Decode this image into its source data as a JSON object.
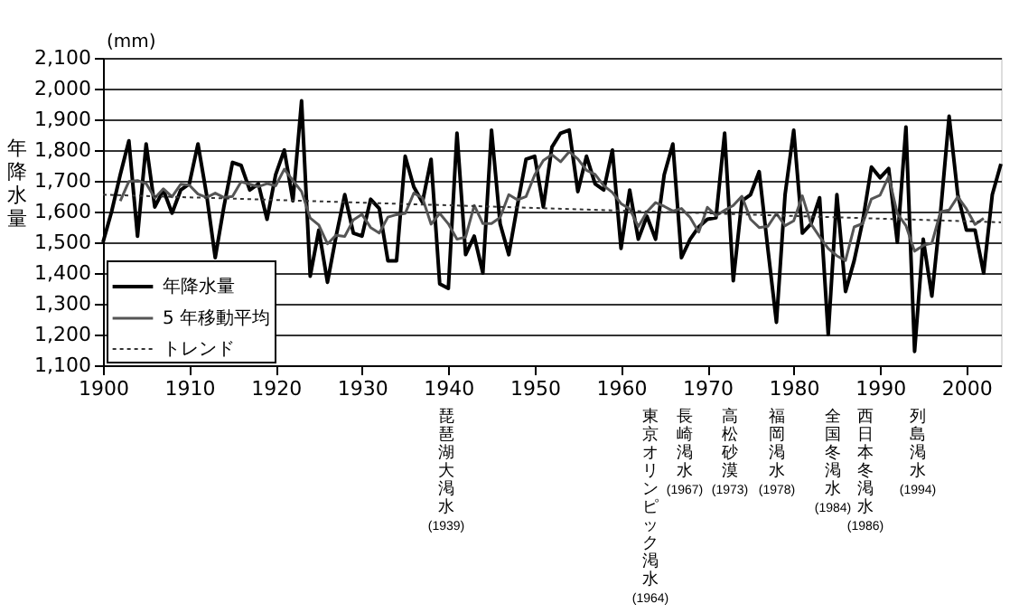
{
  "chart_data": {
    "type": "line",
    "ylabel": "年降水量",
    "annotations": [
      "(mm)",
      "琵琶湖大渇水(1939)",
      "東京オリンピック渇水(1964)",
      "長崎渇水(1967)",
      "高松砂漠(1973)",
      "福岡渇水(1978)",
      "全国冬渇水(1984)",
      "西日本冬渇水(1986)",
      "列島渇水(1994)"
    ],
    "xlim": [
      1900,
      2004
    ],
    "xticks": [
      1900,
      1910,
      1920,
      1930,
      1940,
      1950,
      1960,
      1970,
      1980,
      1990,
      2000
    ],
    "ylim": [
      1100,
      2100
    ],
    "yticks": [
      {
        "value": 1100,
        "label": "1,100"
      },
      {
        "value": 1200,
        "label": "1,200"
      },
      {
        "value": 1300,
        "label": "1,300"
      },
      {
        "value": 1400,
        "label": "1,400"
      },
      {
        "value": 1500,
        "label": "1,500"
      },
      {
        "value": 1600,
        "label": "1,600"
      },
      {
        "value": 1700,
        "label": "1,700"
      },
      {
        "value": 1800,
        "label": "1,800"
      },
      {
        "value": 1900,
        "label": "1,900"
      },
      {
        "value": 2000,
        "label": "2,000"
      },
      {
        "value": 2100,
        "label": "2,100"
      }
    ],
    "grid": "y",
    "legend": "bottom left",
    "marker": "none",
    "series": [
      {
        "name": "年降水量",
        "color": "#000000",
        "line_style": "solid",
        "x": [
          1900,
          1901,
          1902,
          1903,
          1904,
          1905,
          1906,
          1907,
          1908,
          1909,
          1910,
          1911,
          1912,
          1913,
          1914,
          1915,
          1916,
          1917,
          1918,
          1919,
          1920,
          1921,
          1922,
          1923,
          1924,
          1925,
          1926,
          1927,
          1928,
          1929,
          1930,
          1931,
          1932,
          1933,
          1934,
          1935,
          1936,
          1937,
          1938,
          1939,
          1940,
          1941,
          1942,
          1943,
          1944,
          1945,
          1946,
          1947,
          1948,
          1949,
          1950,
          1951,
          1952,
          1953,
          1954,
          1955,
          1956,
          1957,
          1958,
          1959,
          1960,
          1961,
          1962,
          1963,
          1964,
          1965,
          1966,
          1967,
          1968,
          1969,
          1970,
          1971,
          1972,
          1973,
          1974,
          1975,
          1976,
          1977,
          1978,
          1979,
          1980,
          1981,
          1982,
          1983,
          1984,
          1985,
          1986,
          1987,
          1988,
          1989,
          1990,
          1991,
          1992,
          1993,
          1994,
          1995,
          1996,
          1997,
          1998,
          1999,
          2000,
          2001,
          2002,
          2003,
          2004
        ],
        "values": [
          1500,
          1600,
          1720,
          1830,
          1520,
          1820,
          1615,
          1670,
          1595,
          1670,
          1690,
          1820,
          1655,
          1450,
          1615,
          1760,
          1750,
          1670,
          1690,
          1575,
          1720,
          1800,
          1635,
          1960,
          1390,
          1540,
          1370,
          1520,
          1655,
          1530,
          1520,
          1640,
          1610,
          1440,
          1440,
          1780,
          1680,
          1630,
          1770,
          1365,
          1350,
          1855,
          1460,
          1520,
          1400,
          1865,
          1560,
          1460,
          1620,
          1770,
          1780,
          1615,
          1810,
          1855,
          1865,
          1665,
          1780,
          1690,
          1670,
          1800,
          1480,
          1670,
          1510,
          1585,
          1510,
          1720,
          1820,
          1450,
          1510,
          1550,
          1575,
          1580,
          1855,
          1375,
          1635,
          1655,
          1730,
          1480,
          1240,
          1655,
          1865,
          1530,
          1560,
          1645,
          1200,
          1655,
          1340,
          1440,
          1570,
          1745,
          1710,
          1740,
          1500,
          1875,
          1145,
          1510,
          1325,
          1595,
          1910,
          1655,
          1540,
          1540,
          1400,
          1655,
          1755
        ]
      },
      {
        "name": "5 年移動平均",
        "color": "#555555",
        "line_style": "solid",
        "x": [
          1902,
          1903,
          1904,
          1905,
          1906,
          1907,
          1908,
          1909,
          1910,
          1911,
          1912,
          1913,
          1914,
          1915,
          1916,
          1917,
          1918,
          1919,
          1920,
          1921,
          1922,
          1923,
          1924,
          1925,
          1926,
          1927,
          1928,
          1929,
          1930,
          1931,
          1932,
          1933,
          1934,
          1935,
          1936,
          1937,
          1938,
          1939,
          1940,
          1941,
          1942,
          1943,
          1944,
          1945,
          1946,
          1947,
          1948,
          1949,
          1950,
          1951,
          1952,
          1953,
          1954,
          1955,
          1956,
          1957,
          1958,
          1959,
          1960,
          1961,
          1962,
          1963,
          1964,
          1965,
          1966,
          1967,
          1968,
          1969,
          1970,
          1971,
          1972,
          1973,
          1974,
          1975,
          1976,
          1977,
          1978,
          1979,
          1980,
          1981,
          1982,
          1983,
          1984,
          1985,
          1986,
          1987,
          1988,
          1989,
          1990,
          1991,
          1992,
          1993,
          1994,
          1995,
          1996,
          1997,
          1998,
          1999,
          2000,
          2001,
          2002
        ],
        "values": [
          1634,
          1698,
          1701,
          1691,
          1644,
          1674,
          1648,
          1689,
          1686,
          1657,
          1646,
          1660,
          1646,
          1649,
          1697,
          1689,
          1681,
          1691,
          1684,
          1738,
          1701,
          1665,
          1579,
          1556,
          1495,
          1523,
          1519,
          1573,
          1591,
          1548,
          1530,
          1582,
          1590,
          1594,
          1660,
          1645,
          1559,
          1594,
          1560,
          1510,
          1517,
          1620,
          1561,
          1561,
          1581,
          1655,
          1638,
          1649,
          1719,
          1766,
          1785,
          1762,
          1795,
          1771,
          1734,
          1721,
          1684,
          1662,
          1626,
          1609,
          1551,
          1599,
          1629,
          1617,
          1602,
          1610,
          1581,
          1533,
          1614,
          1587,
          1604,
          1620,
          1650,
          1575,
          1548,
          1552,
          1594,
          1554,
          1570,
          1651,
          1560,
          1518,
          1480,
          1456,
          1441,
          1550,
          1561,
          1641,
          1653,
          1714,
          1594,
          1554,
          1471,
          1490,
          1497,
          1599,
          1605,
          1648,
          1609,
          1558,
          1578
        ]
      },
      {
        "name": "トレンド",
        "color": "#333333",
        "line_style": "dotted",
        "x": [
          1900,
          2004
        ],
        "values": [
          1655,
          1565
        ]
      }
    ]
  }
}
